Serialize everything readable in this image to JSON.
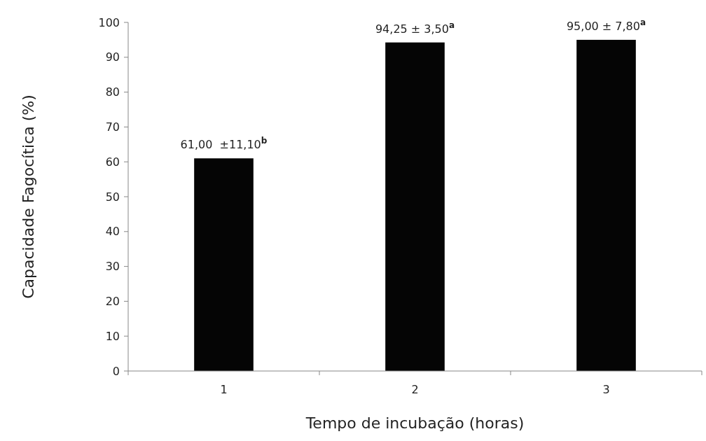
{
  "chart_data": {
    "type": "bar",
    "xlabel": "Tempo de incubação (horas)",
    "ylabel": "Capacidade Fagocítica (%)",
    "categories": [
      "1",
      "2",
      "3"
    ],
    "values": [
      61,
      94.25,
      95
    ],
    "color": "#050505",
    "value_labels": [
      "61,00  ±11,10$^{b}$",
      "94,25 ± 3,50$^{a}$",
      "95,00 ± 7,80$^{a}$"
    ],
    "ylim": [
      0,
      100
    ],
    "yticks": [
      0,
      10,
      20,
      30,
      40,
      50,
      60,
      70,
      80,
      90,
      100
    ],
    "grid": false
  }
}
